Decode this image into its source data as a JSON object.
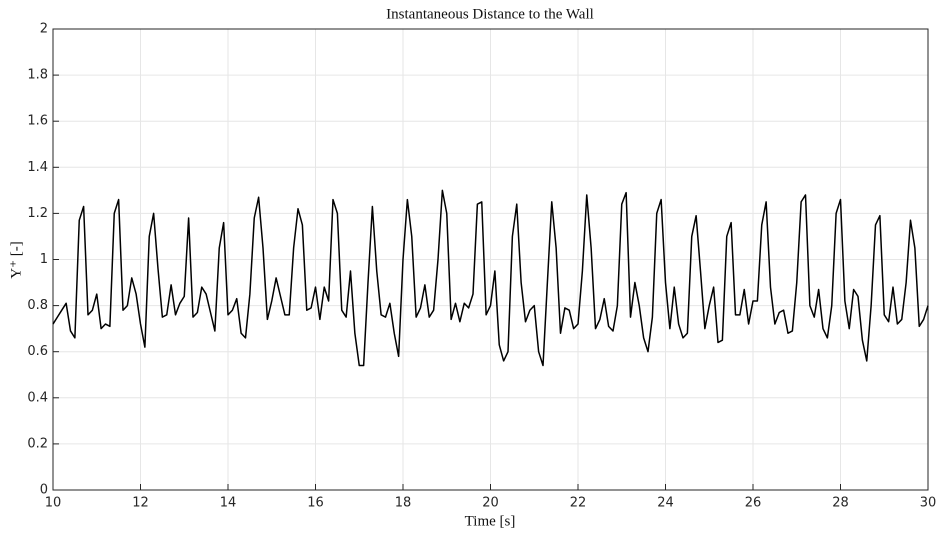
{
  "chart_data": {
    "type": "line",
    "title": "Instantaneous Distance to the Wall",
    "xlabel": "Time [s]",
    "ylabel": "Y⁺ [-]",
    "xlim": [
      10,
      30
    ],
    "ylim": [
      0,
      2
    ],
    "xticks": [
      10,
      12,
      14,
      16,
      18,
      20,
      22,
      24,
      26,
      28,
      30
    ],
    "yticks": [
      0,
      0.2,
      0.4,
      0.6,
      0.8,
      1,
      1.2,
      1.4,
      1.6,
      1.8,
      2
    ],
    "grid": true,
    "x": [
      10.0,
      10.1,
      10.2,
      10.3,
      10.4,
      10.5,
      10.6,
      10.7,
      10.8,
      10.9,
      11.0,
      11.1,
      11.2,
      11.3,
      11.4,
      11.5,
      11.6,
      11.7,
      11.8,
      11.9,
      12.0,
      12.1,
      12.2,
      12.3,
      12.4,
      12.5,
      12.6,
      12.7,
      12.8,
      12.9,
      13.0,
      13.1,
      13.2,
      13.3,
      13.4,
      13.5,
      13.6,
      13.7,
      13.8,
      13.9,
      14.0,
      14.1,
      14.2,
      14.3,
      14.4,
      14.5,
      14.6,
      14.7,
      14.8,
      14.9,
      15.0,
      15.1,
      15.2,
      15.3,
      15.4,
      15.5,
      15.6,
      15.7,
      15.8,
      15.9,
      16.0,
      16.1,
      16.2,
      16.3,
      16.4,
      16.5,
      16.6,
      16.7,
      16.8,
      16.9,
      17.0,
      17.1,
      17.2,
      17.3,
      17.4,
      17.5,
      17.6,
      17.7,
      17.8,
      17.9,
      18.0,
      18.1,
      18.2,
      18.3,
      18.4,
      18.5,
      18.6,
      18.7,
      18.8,
      18.9,
      19.0,
      19.1,
      19.2,
      19.3,
      19.4,
      19.5,
      19.6,
      19.7,
      19.8,
      19.9,
      20.0,
      20.1,
      20.2,
      20.3,
      20.4,
      20.5,
      20.6,
      20.7,
      20.8,
      20.9,
      21.0,
      21.1,
      21.2,
      21.3,
      21.4,
      21.5,
      21.6,
      21.7,
      21.8,
      21.9,
      22.0,
      22.1,
      22.2,
      22.3,
      22.4,
      22.5,
      22.6,
      22.7,
      22.8,
      22.9,
      23.0,
      23.1,
      23.2,
      23.3,
      23.4,
      23.5,
      23.6,
      23.7,
      23.8,
      23.9,
      24.0,
      24.1,
      24.2,
      24.3,
      24.4,
      24.5,
      24.6,
      24.7,
      24.8,
      24.9,
      25.0,
      25.1,
      25.2,
      25.3,
      25.4,
      25.5,
      25.6,
      25.7,
      25.8,
      25.9,
      26.0,
      26.1,
      26.2,
      26.3,
      26.4,
      26.5,
      26.6,
      26.7,
      26.8,
      26.9,
      27.0,
      27.1,
      27.2,
      27.3,
      27.4,
      27.5,
      27.6,
      27.7,
      27.8,
      27.9,
      28.0,
      28.1,
      28.2,
      28.3,
      28.4,
      28.5,
      28.6,
      28.7,
      28.8,
      28.9,
      29.0,
      29.1,
      29.2,
      29.3,
      29.4,
      29.5,
      29.6,
      29.7,
      29.8,
      29.9,
      30.0
    ],
    "series": [
      {
        "color": "#000000",
        "values": [
          0.72,
          0.75,
          0.78,
          0.81,
          0.69,
          0.66,
          1.17,
          1.23,
          0.76,
          0.78,
          0.85,
          0.7,
          0.72,
          0.71,
          1.2,
          1.26,
          0.78,
          0.8,
          0.92,
          0.85,
          0.72,
          0.62,
          1.1,
          1.2,
          0.96,
          0.75,
          0.76,
          0.89,
          0.76,
          0.81,
          0.84,
          1.18,
          0.75,
          0.77,
          0.88,
          0.85,
          0.77,
          0.69,
          1.05,
          1.16,
          0.76,
          0.78,
          0.83,
          0.68,
          0.66,
          0.85,
          1.18,
          1.27,
          1.05,
          0.74,
          0.82,
          0.92,
          0.84,
          0.76,
          0.76,
          1.05,
          1.22,
          1.15,
          0.78,
          0.79,
          0.88,
          0.74,
          0.88,
          0.82,
          1.26,
          1.2,
          0.78,
          0.75,
          0.95,
          0.68,
          0.54,
          0.54,
          0.9,
          1.23,
          0.95,
          0.76,
          0.75,
          0.81,
          0.68,
          0.58,
          1.0,
          1.26,
          1.1,
          0.75,
          0.79,
          0.89,
          0.75,
          0.78,
          1.0,
          1.3,
          1.2,
          0.74,
          0.81,
          0.73,
          0.81,
          0.79,
          0.85,
          1.24,
          1.25,
          0.76,
          0.8,
          0.95,
          0.63,
          0.56,
          0.6,
          1.1,
          1.24,
          0.9,
          0.73,
          0.78,
          0.8,
          0.6,
          0.54,
          0.9,
          1.25,
          1.05,
          0.68,
          0.79,
          0.78,
          0.7,
          0.72,
          0.95,
          1.28,
          1.05,
          0.7,
          0.74,
          0.83,
          0.71,
          0.69,
          0.8,
          1.24,
          1.29,
          0.75,
          0.9,
          0.8,
          0.66,
          0.6,
          0.75,
          1.2,
          1.26,
          0.9,
          0.7,
          0.88,
          0.72,
          0.66,
          0.68,
          1.1,
          1.19,
          0.95,
          0.7,
          0.8,
          0.88,
          0.64,
          0.65,
          1.1,
          1.16,
          0.76,
          0.76,
          0.87,
          0.72,
          0.82,
          0.82,
          1.15,
          1.25,
          0.88,
          0.72,
          0.77,
          0.78,
          0.68,
          0.69,
          0.9,
          1.25,
          1.28,
          0.8,
          0.75,
          0.87,
          0.7,
          0.66,
          0.8,
          1.2,
          1.26,
          0.82,
          0.7,
          0.87,
          0.84,
          0.65,
          0.56,
          0.8,
          1.15,
          1.19,
          0.76,
          0.73,
          0.88,
          0.72,
          0.74,
          0.9,
          1.17,
          1.05,
          0.71,
          0.74,
          0.8
        ]
      }
    ]
  }
}
